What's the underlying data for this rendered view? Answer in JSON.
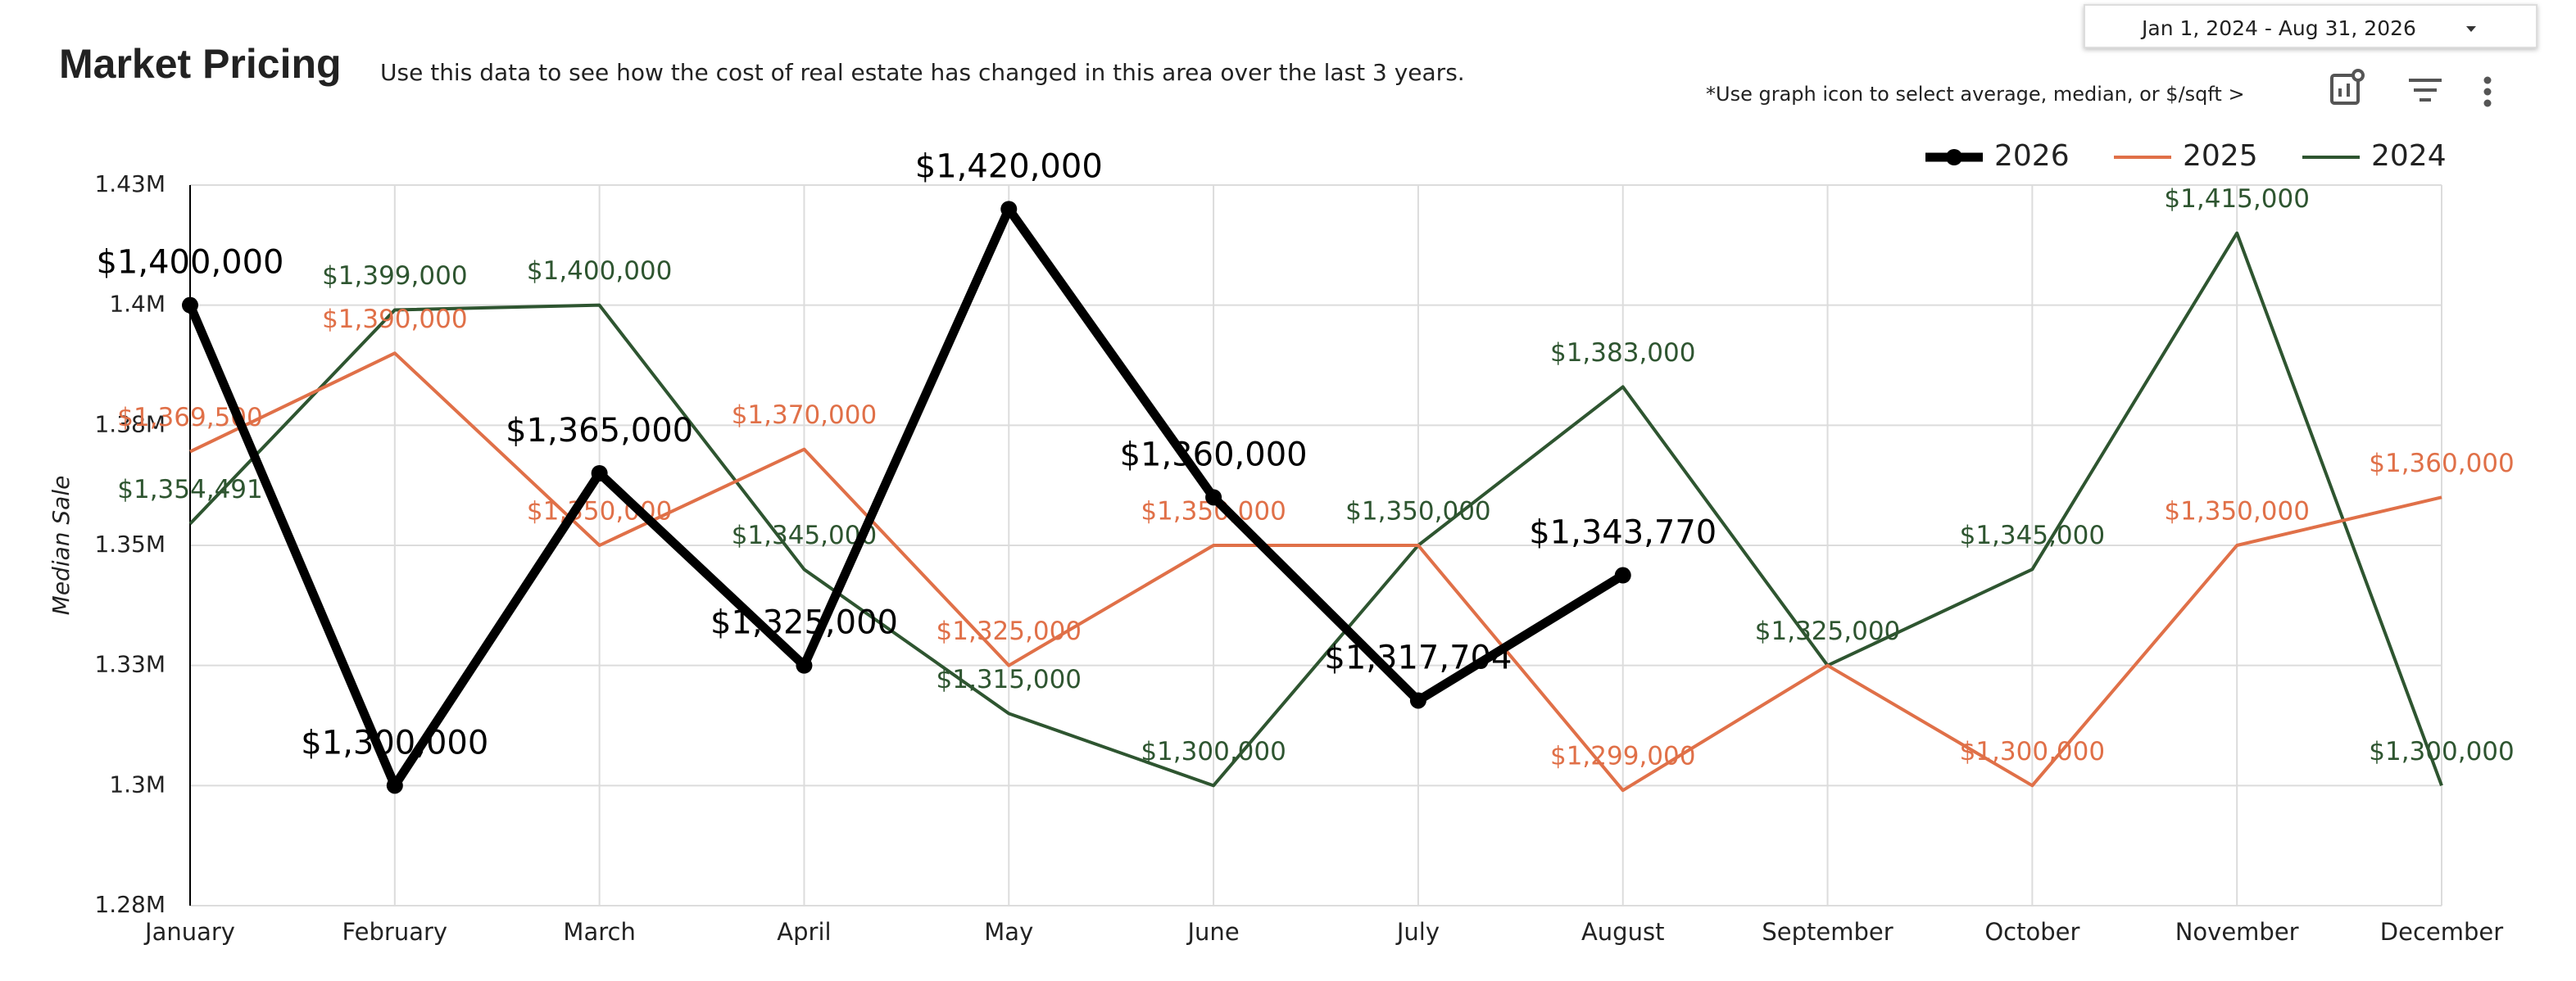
{
  "header": {
    "title": "Market Pricing",
    "subtitle": "Use this data to see how the cost of real estate has changed in this area over the last 3 years.",
    "date_range": "Jan 1, 2024 - Aug 31, 2026",
    "note": "*Use graph icon to  select average, median, or $/sqft >"
  },
  "chart_data": {
    "type": "line",
    "y_label": "Median Sale",
    "categories": [
      "January",
      "February",
      "March",
      "April",
      "May",
      "June",
      "July",
      "August",
      "September",
      "October",
      "November",
      "December"
    ],
    "ylim": [
      1275000,
      1425000
    ],
    "yticks": [
      {
        "value": 1275000,
        "label": "1.28M"
      },
      {
        "value": 1300000,
        "label": "1.3M"
      },
      {
        "value": 1325000,
        "label": "1.33M"
      },
      {
        "value": 1350000,
        "label": "1.35M"
      },
      {
        "value": 1375000,
        "label": "1.38M"
      },
      {
        "value": 1400000,
        "label": "1.4M"
      },
      {
        "value": 1425000,
        "label": "1.43M"
      }
    ],
    "grid": true,
    "legend": "top-right",
    "series": [
      {
        "name": "2026",
        "color": "#000000",
        "markers": true,
        "values": [
          1400000,
          1300000,
          1365000,
          1325000,
          1420000,
          1360000,
          1317704,
          1343770,
          null,
          null,
          null,
          null
        ],
        "value_labels": [
          "$1,400,000",
          "$1,300,000",
          "$1,365,000",
          "$1,325,000",
          "$1,420,000",
          "$1,360,000",
          "$1,317,704",
          "$1,343,770",
          null,
          null,
          null,
          null
        ]
      },
      {
        "name": "2025",
        "color": "#e07048",
        "markers": false,
        "values": [
          1369500,
          1390000,
          1350000,
          1370000,
          1325000,
          1350000,
          1350000,
          1299000,
          1325000,
          1300000,
          1350000,
          1360000
        ],
        "value_labels": [
          "$1,369,500",
          "$1,390,000",
          "$1,350,000",
          "$1,370,000",
          "$1,325,000",
          "$1,350,000",
          null,
          "$1,299,000",
          null,
          "$1,300,000",
          "$1,350,000",
          "$1,360,000"
        ]
      },
      {
        "name": "2024",
        "color": "#2e5530",
        "markers": false,
        "values": [
          1354491,
          1399000,
          1400000,
          1345000,
          1315000,
          1300000,
          1350000,
          1383000,
          1325000,
          1345000,
          1415000,
          1300000
        ],
        "value_labels": [
          "$1,354,491",
          "$1,399,000",
          "$1,400,000",
          "$1,345,000",
          "$1,315,000",
          "$1,300,000",
          "$1,350,000",
          "$1,383,000",
          "$1,325,000",
          "$1,345,000",
          "$1,415,000",
          "$1,300,000"
        ]
      }
    ]
  }
}
